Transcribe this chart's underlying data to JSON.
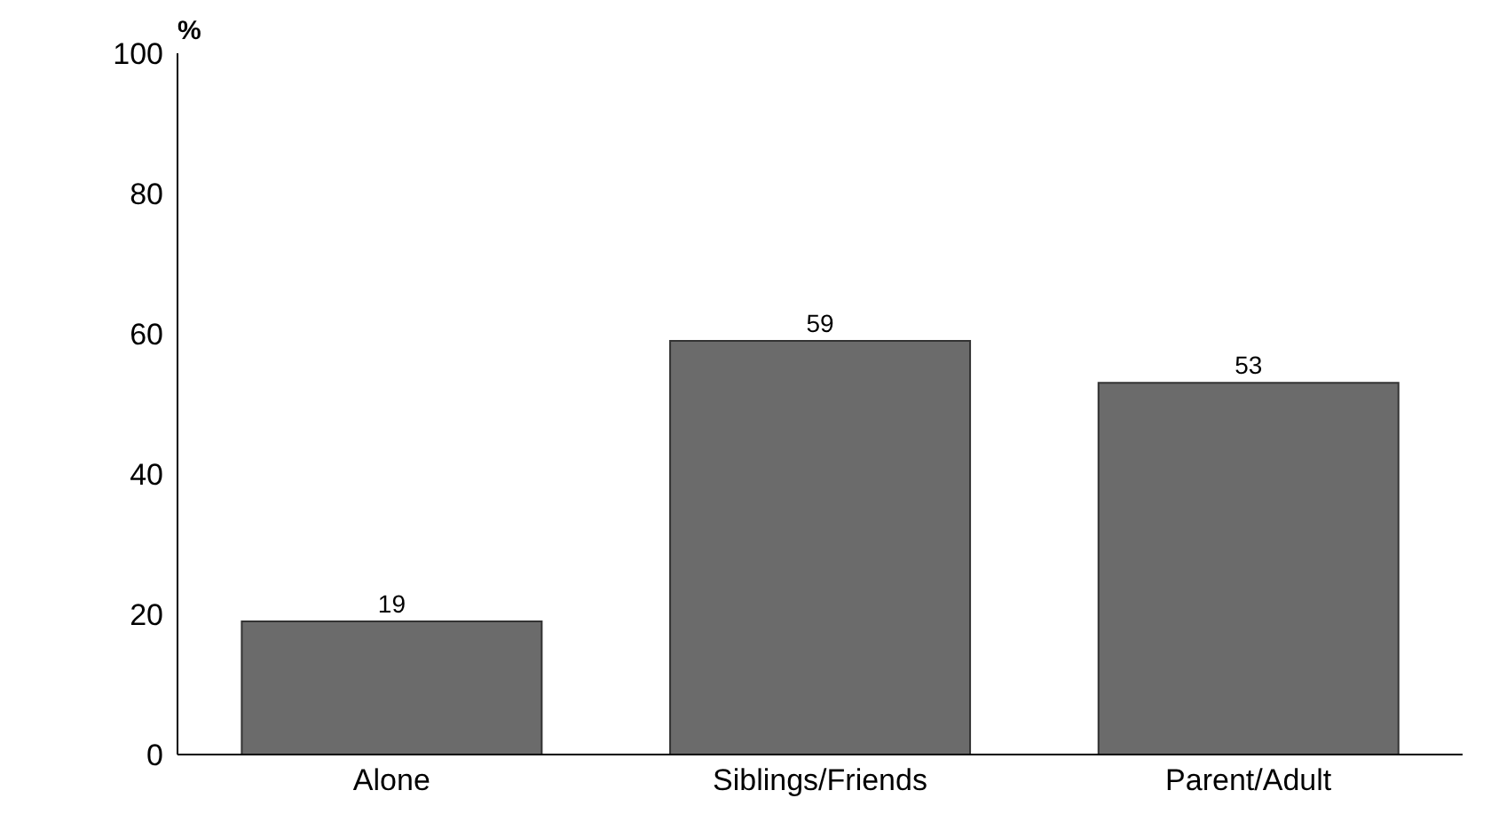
{
  "chart_data": {
    "type": "bar",
    "ylabel": "%",
    "categories": [
      "Alone",
      "Siblings/Friends",
      "Parent/Adult"
    ],
    "values": [
      19,
      59,
      53
    ],
    "color": "#6b6b6b",
    "ylim": [
      0,
      100
    ],
    "yticks": [
      0,
      20,
      40,
      60,
      80,
      100
    ],
    "grid": false,
    "data_labels": true
  }
}
